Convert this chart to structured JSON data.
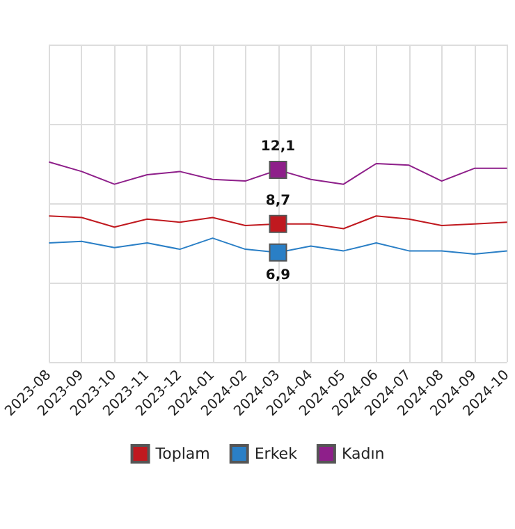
{
  "chart_data": {
    "type": "line",
    "categories": [
      "2023-08",
      "2023-09",
      "2023-10",
      "2023-11",
      "2023-12",
      "2024-01",
      "2024-02",
      "2024-03",
      "2024-04",
      "2024-05",
      "2024-06",
      "2024-07",
      "2024-08",
      "2024-09",
      "2024-10"
    ],
    "series": [
      {
        "name": "Toplam",
        "color": "#c0191f",
        "values": [
          9.2,
          9.1,
          8.5,
          9.0,
          8.8,
          9.1,
          8.6,
          8.7,
          8.7,
          8.4,
          9.2,
          9.0,
          8.6,
          8.7,
          8.8
        ],
        "value_labels": [
          null,
          null,
          null,
          null,
          null,
          null,
          null,
          "8,7",
          null,
          null,
          null,
          null,
          null,
          null,
          null
        ]
      },
      {
        "name": "Erkek",
        "color": "#2a7fc6",
        "values": [
          7.5,
          7.6,
          7.2,
          7.5,
          7.1,
          7.8,
          7.1,
          6.9,
          7.3,
          7.0,
          7.5,
          7.0,
          7.0,
          6.8,
          7.0
        ],
        "value_labels": [
          null,
          null,
          null,
          null,
          null,
          null,
          null,
          "6,9",
          null,
          null,
          null,
          null,
          null,
          null,
          null
        ]
      },
      {
        "name": "Kadın",
        "color": "#8e1f8a",
        "values": [
          12.6,
          12.0,
          11.2,
          11.8,
          12.0,
          11.5,
          11.4,
          12.1,
          11.5,
          11.2,
          12.5,
          12.4,
          11.4,
          12.2,
          12.2
        ],
        "value_labels": [
          null,
          null,
          null,
          null,
          null,
          null,
          null,
          "12,1",
          null,
          null,
          null,
          null,
          null,
          null,
          null
        ]
      }
    ],
    "ylim": [
      0,
      20
    ],
    "yticks": [
      {
        "value": 0,
        "label": null
      },
      {
        "value": 5,
        "label": null
      },
      {
        "value": 10,
        "label": null
      },
      {
        "value": 15,
        "label": null
      },
      {
        "value": 20,
        "label": null
      }
    ],
    "tick_labels": "x",
    "grid": true,
    "legend": "bottom",
    "line_style": "solid"
  }
}
